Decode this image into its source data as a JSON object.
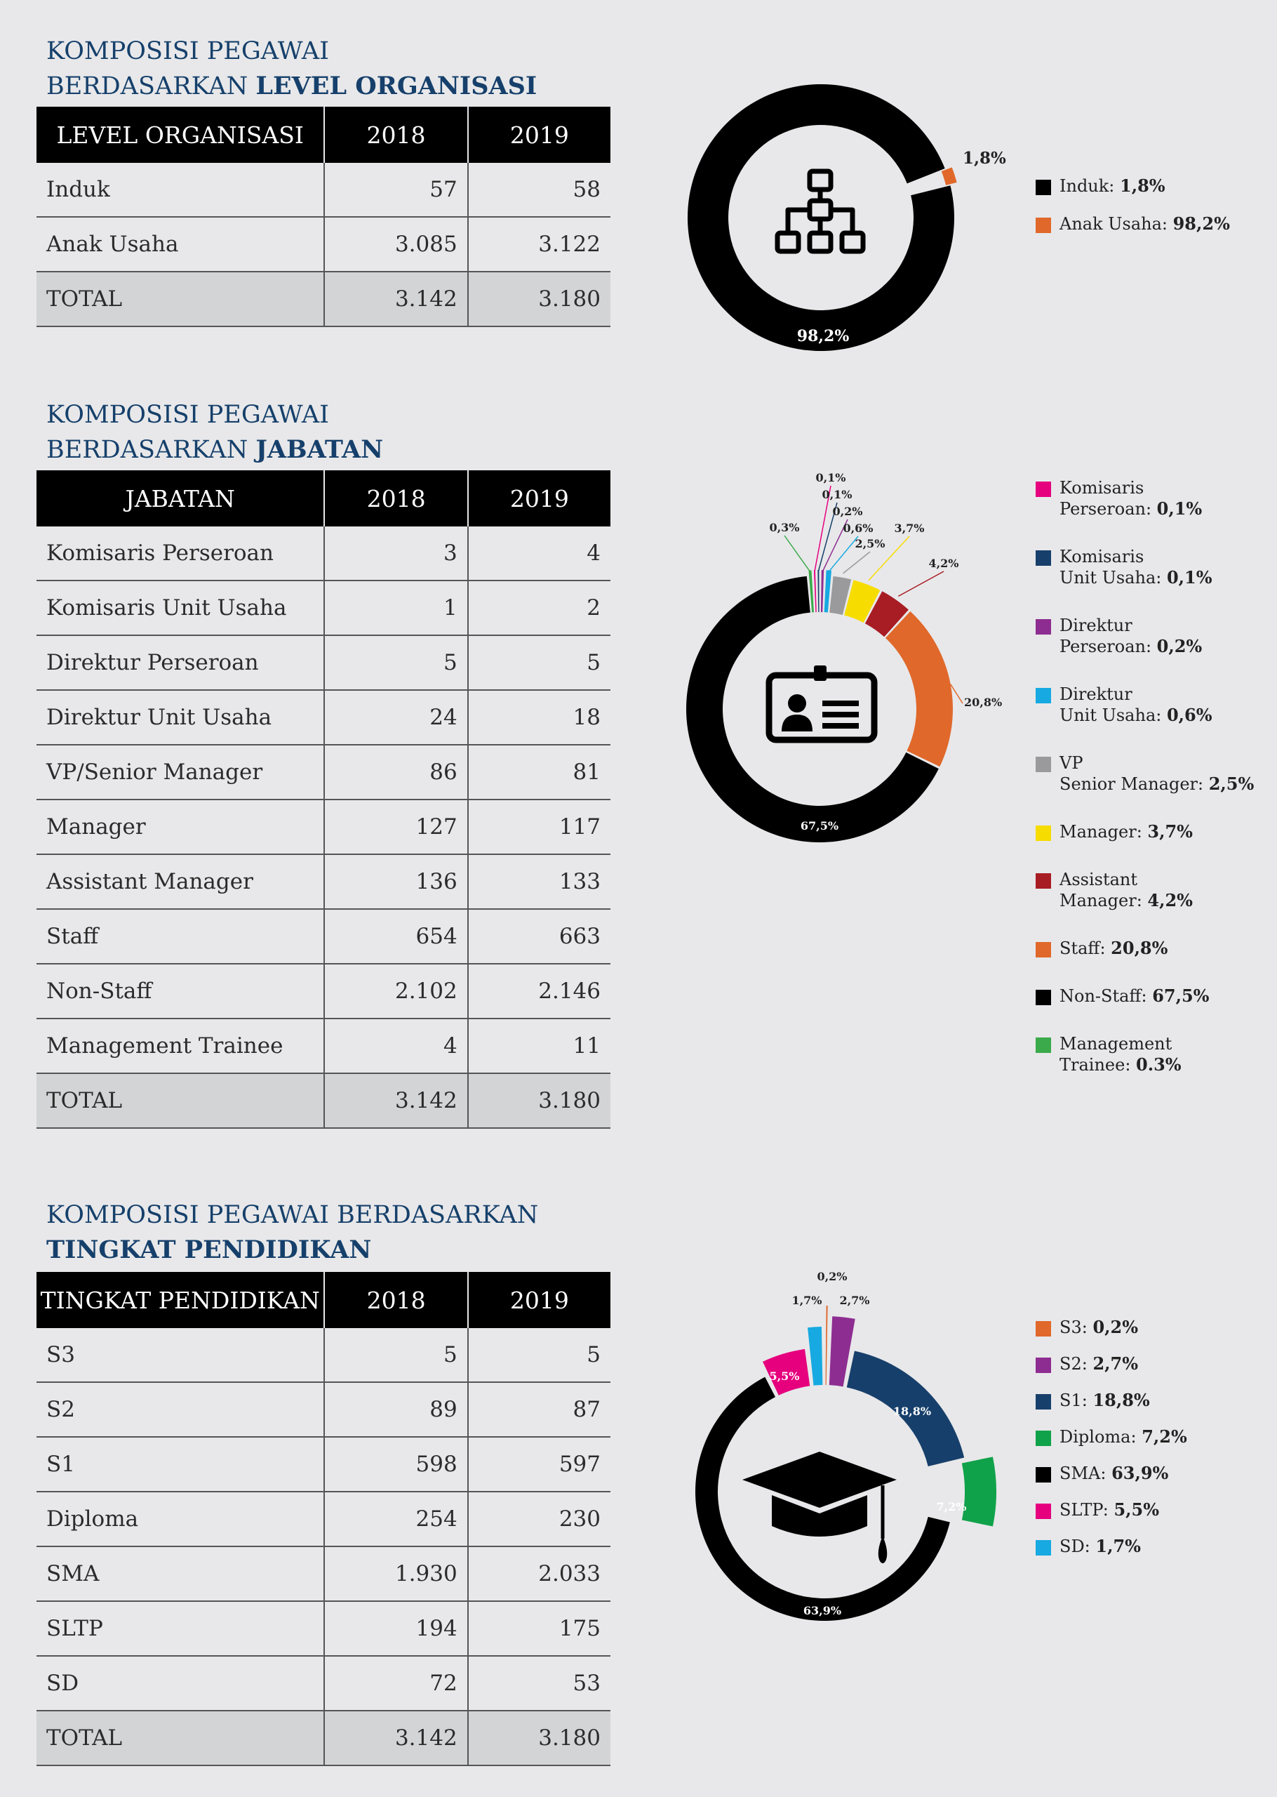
{
  "sections": [
    {
      "title_line1": "KOMPOSISI PEGAWAI",
      "title_line2_prefix": "BERDASARKAN ",
      "title_line2_bold": "LEVEL ORGANISASI",
      "headers": [
        "LEVEL ORGANISASI",
        "2018",
        "2019"
      ],
      "rows": [
        {
          "name": "Induk",
          "y2018": "57",
          "y2019": "58"
        },
        {
          "name": "Anak Usaha",
          "y2018": "3.085",
          "y2019": "3.122"
        }
      ],
      "total": {
        "name": "TOTAL",
        "y2018": "3.142",
        "y2019": "3.180"
      },
      "legend": [
        {
          "label": "Induk: ",
          "value": "1,8%",
          "color": "#000000"
        },
        {
          "label": "Anak Usaha: ",
          "value": "98,2%",
          "color": "#e0682a"
        }
      ]
    },
    {
      "title_line1": "KOMPOSISI PEGAWAI",
      "title_line2_prefix": "BERDASARKAN ",
      "title_line2_bold": "JABATAN",
      "headers": [
        "JABATAN",
        "2018",
        "2019"
      ],
      "rows": [
        {
          "name": "Komisaris Perseroan",
          "y2018": "3",
          "y2019": "4"
        },
        {
          "name": "Komisaris Unit Usaha",
          "y2018": "1",
          "y2019": "2"
        },
        {
          "name": "Direktur Perseroan",
          "y2018": "5",
          "y2019": "5"
        },
        {
          "name": "Direktur Unit Usaha",
          "y2018": "24",
          "y2019": "18"
        },
        {
          "name": "VP/Senior Manager",
          "y2018": "86",
          "y2019": "81"
        },
        {
          "name": "Manager",
          "y2018": "127",
          "y2019": "117"
        },
        {
          "name": "Assistant Manager",
          "y2018": "136",
          "y2019": "133"
        },
        {
          "name": "Staff",
          "y2018": "654",
          "y2019": "663"
        },
        {
          "name": "Non-Staff",
          "y2018": "2.102",
          "y2019": "2.146"
        },
        {
          "name": "Management Trainee",
          "y2018": "4",
          "y2019": "11"
        }
      ],
      "total": {
        "name": "TOTAL",
        "y2018": "3.142",
        "y2019": "3.180"
      },
      "legend": [
        {
          "label": "Komisaris",
          "label2": "Perseroan: ",
          "value": "0,1%",
          "color": "#e6007e"
        },
        {
          "label": "Komisaris",
          "label2": "Unit Usaha: ",
          "value": "0,1%",
          "color": "#173f6b"
        },
        {
          "label": "Direktur",
          "label2": "Perseroan: ",
          "value": "0,2%",
          "color": "#8e2d91"
        },
        {
          "label": "Direktur",
          "label2": "Unit Usaha: ",
          "value": "0,6%",
          "color": "#17a9e1"
        },
        {
          "label": "VP",
          "label2": "Senior Manager: ",
          "value": "2,5%",
          "color": "#9a9a9c"
        },
        {
          "label": "Manager: ",
          "label2": "",
          "value": "3,7%",
          "color": "#f7dc00"
        },
        {
          "label": "Assistant",
          "label2": "Manager: ",
          "value": "4,2%",
          "color": "#a81c24"
        },
        {
          "label": "Staff: ",
          "label2": "",
          "value": "20,8%",
          "color": "#e0682a"
        },
        {
          "label": "Non-Staff: ",
          "label2": "",
          "value": "67,5%",
          "color": "#000000"
        },
        {
          "label": "Management",
          "label2": "Trainee: ",
          "value": "0.3%",
          "color": "#3aaa4a"
        }
      ]
    },
    {
      "title_line1": "KOMPOSISI PEGAWAI BERDASARKAN",
      "title_line2_prefix": "",
      "title_line2_bold": "TINGKAT PENDIDIKAN",
      "headers": [
        "TINGKAT PENDIDIKAN",
        "2018",
        "2019"
      ],
      "rows": [
        {
          "name": "S3",
          "y2018": "5",
          "y2019": "5"
        },
        {
          "name": "S2",
          "y2018": "89",
          "y2019": "87"
        },
        {
          "name": "S1",
          "y2018": "598",
          "y2019": "597"
        },
        {
          "name": "Diploma",
          "y2018": "254",
          "y2019": "230"
        },
        {
          "name": "SMA",
          "y2018": "1.930",
          "y2019": "2.033"
        },
        {
          "name": "SLTP",
          "y2018": "194",
          "y2019": "175"
        },
        {
          "name": "SD",
          "y2018": "72",
          "y2019": "53"
        }
      ],
      "total": {
        "name": "TOTAL",
        "y2018": "3.142",
        "y2019": "3.180"
      },
      "legend": [
        {
          "label": "S3: ",
          "value": "0,2%",
          "color": "#e0682a"
        },
        {
          "label": "S2: ",
          "value": "2,7%",
          "color": "#8e2d91"
        },
        {
          "label": "S1: ",
          "value": "18,8%",
          "color": "#173f6b"
        },
        {
          "label": "Diploma: ",
          "value": "7,2%",
          "color": "#10a24a"
        },
        {
          "label": "SMA: ",
          "value": "63,9%",
          "color": "#000000"
        },
        {
          "label": "SLTP: ",
          "value": "5,5%",
          "color": "#e6007e"
        },
        {
          "label": "SD: ",
          "value": "1,7%",
          "color": "#17a9e1"
        }
      ]
    }
  ],
  "chart_data": [
    {
      "type": "pie",
      "categories": [
        "Induk",
        "Anak Usaha"
      ],
      "values": [
        1.8,
        98.2
      ],
      "labels": [
        "1,8%",
        "98,2%"
      ],
      "colors": [
        "#e0682a",
        "#000000"
      ]
    },
    {
      "type": "pie",
      "categories": [
        "Komisaris Perseroan",
        "Komisaris Unit Usaha",
        "Direktur Perseroan",
        "Direktur Unit Usaha",
        "VP/Senior Manager",
        "Manager",
        "Assistant Manager",
        "Staff",
        "Non-Staff",
        "Management Trainee"
      ],
      "values": [
        0.1,
        0.1,
        0.2,
        0.6,
        2.5,
        3.7,
        4.2,
        20.8,
        67.5,
        0.3
      ],
      "labels": [
        "0,1%",
        "0,1%",
        "0,2%",
        "0,6%",
        "2,5%",
        "3,7%",
        "4,2%",
        "20,8%",
        "67,5%",
        "0,3%"
      ],
      "colors": [
        "#e6007e",
        "#173f6b",
        "#8e2d91",
        "#17a9e1",
        "#9a9a9c",
        "#f7dc00",
        "#a81c24",
        "#e0682a",
        "#000000",
        "#3aaa4a"
      ]
    },
    {
      "type": "pie",
      "categories": [
        "S3",
        "S2",
        "S1",
        "Diploma",
        "SMA",
        "SLTP",
        "SD"
      ],
      "values": [
        0.2,
        2.7,
        18.8,
        7.2,
        63.9,
        5.5,
        1.7
      ],
      "labels": [
        "0,2%",
        "2,7%",
        "18,8%",
        "7,2%",
        "63,9%",
        "5,5%",
        "1,7%"
      ],
      "colors": [
        "#e0682a",
        "#8e2d91",
        "#173f6b",
        "#10a24a",
        "#000000",
        "#e6007e",
        "#17a9e1"
      ]
    }
  ]
}
